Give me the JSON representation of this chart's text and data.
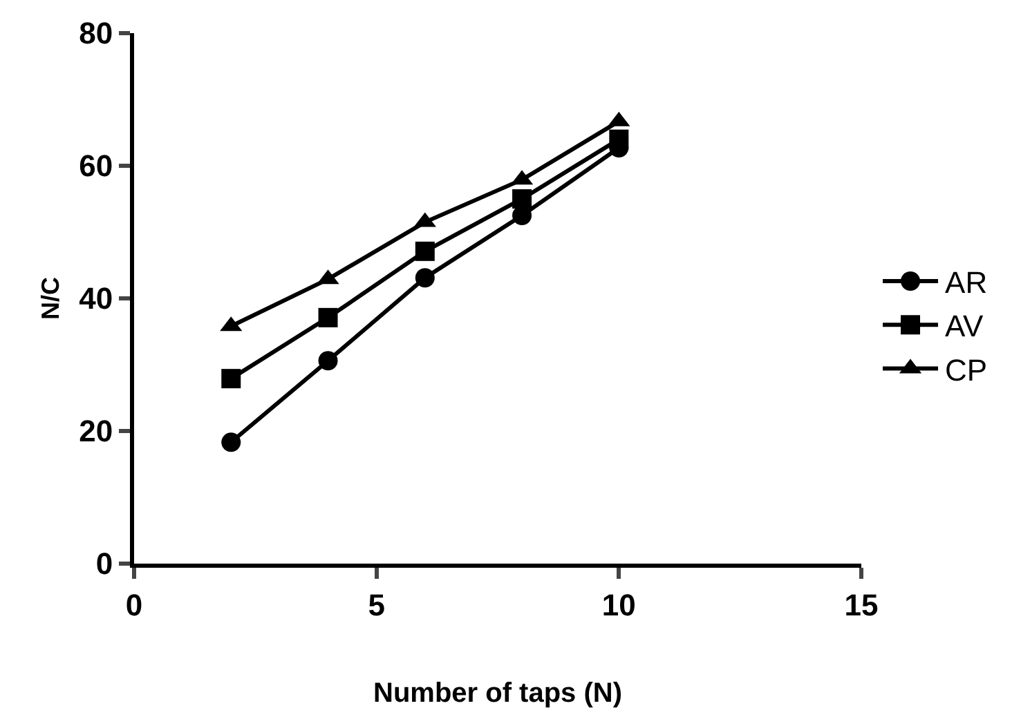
{
  "chart_data": {
    "type": "line",
    "xlabel": "Number of taps (N)",
    "ylabel": "N/C",
    "x": [
      2,
      4,
      6,
      8,
      10
    ],
    "series": [
      {
        "name": "AR",
        "color": "#000000",
        "marker": "circle",
        "values": [
          18.3,
          30.6,
          43.1,
          52.5,
          62.7
        ]
      },
      {
        "name": "AV",
        "color": "#000000",
        "marker": "square",
        "values": [
          27.9,
          37.1,
          47.1,
          55,
          64
        ]
      },
      {
        "name": "CP",
        "color": "#000000",
        "marker": "triangle",
        "values": [
          35.8,
          42.9,
          51.5,
          57.9,
          66.7
        ]
      }
    ],
    "xlim": [
      0,
      15
    ],
    "xticks": [
      0,
      5,
      10,
      15
    ],
    "ylim": [
      0,
      80
    ],
    "yticks": [
      0,
      20,
      40,
      60,
      80
    ],
    "grid": false,
    "legend": "right",
    "line_style": "solid"
  }
}
